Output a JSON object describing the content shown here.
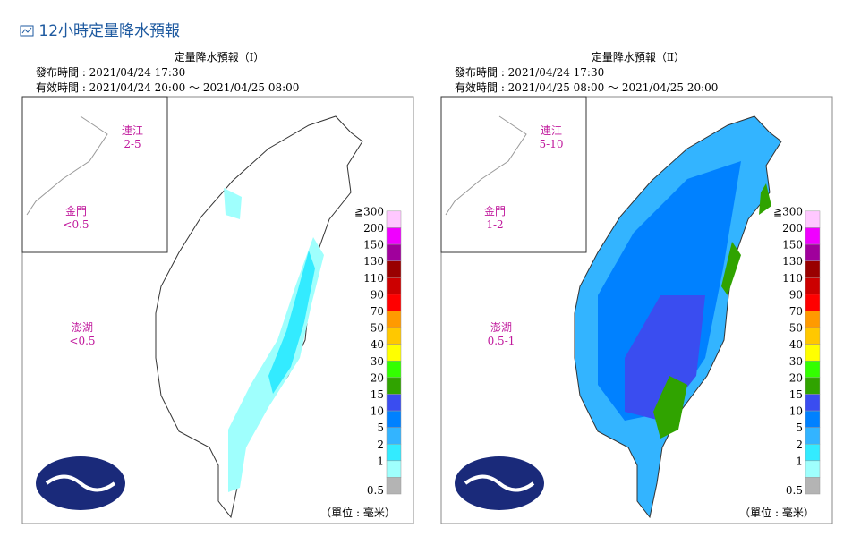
{
  "header": {
    "title": "12小時定量降水預報"
  },
  "legend_labels": [
    "0.5",
    "1",
    "2",
    "5",
    "10",
    "15",
    "20",
    "30",
    "40",
    "50",
    "70",
    "90",
    "110",
    "130",
    "150",
    "200",
    "≧300"
  ],
  "maps": [
    {
      "title": "定量降水預報（Ⅰ）",
      "issued": "發布時間 : 2021/04/24 17:30",
      "valid": "有效時間 : 2021/04/24 20:00 ～ 2021/04/25 08:00",
      "insets": [
        {
          "name": "連江",
          "value": "2-5"
        },
        {
          "name": "金門",
          "value": "<0.5"
        },
        {
          "name": "澎湖",
          "value": "<0.5"
        }
      ],
      "unit": "（單位 : 毫米）"
    },
    {
      "title": "定量降水預報（Ⅱ）",
      "issued": "發布時間 : 2021/04/24 17:30",
      "valid": "有效時間 : 2021/04/25 08:00 ～ 2021/04/25 20:00",
      "insets": [
        {
          "name": "連江",
          "value": "5-10"
        },
        {
          "name": "金門",
          "value": "1-2"
        },
        {
          "name": "澎湖",
          "value": "0.5-1"
        }
      ],
      "unit": "（單位 : 毫米）"
    }
  ]
}
